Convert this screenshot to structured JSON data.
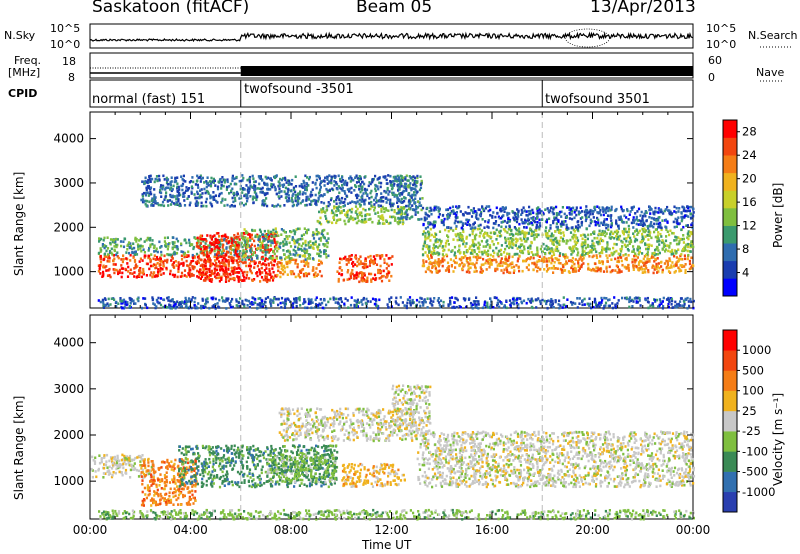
{
  "header": {
    "station": "Saskatoon (fitACF)",
    "beam": "Beam 05",
    "date": "13/Apr/2013"
  },
  "strip_labels": {
    "nsky": "N.Sky",
    "freq_l1": "Freq.",
    "freq_l2": "[MHz]",
    "cpid": "CPID",
    "nsearch": "N.Search",
    "nave": "Nave",
    "tick_10e5_left": "10^5",
    "tick_10e0_left": "10^0",
    "tick_10e5_right": "10^5",
    "tick_10e0_right": "10^0",
    "freq_18": "18",
    "freq_8": "8",
    "nave_60": "60",
    "nave_0": "0"
  },
  "cpid_segments": [
    {
      "label": "normal (fast) 151",
      "start_h": 0
    },
    {
      "label": "twofsound -3501",
      "start_h": 6
    },
    {
      "label": "twofsound 3501",
      "start_h": 18
    }
  ],
  "colors": {
    "accent_dashed": "#bbbbbb"
  },
  "chart_data": [
    {
      "type": "heatmap",
      "name": "power",
      "ylabel": "Slant Range [km]",
      "yticks": [
        1000,
        2000,
        3000,
        4000
      ],
      "ylim": [
        180,
        4600
      ],
      "xlim_h": [
        0,
        24
      ],
      "colorbar": {
        "label": "Power [dB]",
        "ticks": [
          "28",
          "24",
          "20",
          "16",
          "12",
          "8",
          "4"
        ],
        "range": [
          0,
          30
        ],
        "colors": [
          "#0000ff",
          "#1a3db0",
          "#2f6db0",
          "#3b9a6e",
          "#7fbf3f",
          "#c8d02a",
          "#f0b21e",
          "#f57d16",
          "#f2460f",
          "#ff0000"
        ]
      },
      "bands": [
        {
          "x0": 0.3,
          "x1": 5.9,
          "y0": 900,
          "y1": 1400,
          "v": 26
        },
        {
          "x0": 0.3,
          "x1": 5.9,
          "y0": 1400,
          "y1": 1800,
          "v": 11
        },
        {
          "x0": 4.2,
          "x1": 7.4,
          "y0": 800,
          "y1": 1900,
          "v": 27
        },
        {
          "x0": 7.4,
          "x1": 9.2,
          "y0": 900,
          "y1": 1300,
          "v": 22
        },
        {
          "x0": 5.9,
          "x1": 9.5,
          "y0": 1300,
          "y1": 2000,
          "v": 12
        },
        {
          "x0": 9.8,
          "x1": 12.0,
          "y0": 800,
          "y1": 1400,
          "v": 25
        },
        {
          "x0": 9.0,
          "x1": 12.5,
          "y0": 2100,
          "y1": 2500,
          "v": 14
        },
        {
          "x0": 12.2,
          "x1": 13.2,
          "y0": 2200,
          "y1": 3200,
          "v": 9
        },
        {
          "x0": 13.2,
          "x1": 24.0,
          "y0": 1000,
          "y1": 1400,
          "v": 22
        },
        {
          "x0": 13.2,
          "x1": 24.0,
          "y0": 1400,
          "y1": 2000,
          "v": 14
        },
        {
          "x0": 13.2,
          "x1": 24.0,
          "y0": 2000,
          "y1": 2500,
          "v": 6
        },
        {
          "x0": 2.0,
          "x1": 13.0,
          "y0": 2500,
          "y1": 3200,
          "v": 7
        },
        {
          "x0": 0.3,
          "x1": 24.0,
          "y0": 200,
          "y1": 450,
          "v": 6
        }
      ]
    },
    {
      "type": "heatmap",
      "name": "velocity",
      "ylabel": "Slant Range [km]",
      "yticks": [
        1000,
        2000,
        3000,
        4000
      ],
      "ylim": [
        180,
        4600
      ],
      "xlim_h": [
        0,
        24
      ],
      "colorbar": {
        "label": "Velocity [m s⁻¹]",
        "ticks": [
          "1000",
          "500",
          "100",
          "25",
          "-25",
          "-100",
          "-500",
          "-1000"
        ],
        "colors": [
          "#2a3fb0",
          "#3170b0",
          "#3a8a55",
          "#7fbf3f",
          "#c8c8c8",
          "#f0b21e",
          "#f57d16",
          "#f2460f",
          "#ff0000"
        ]
      },
      "bands": [
        {
          "x0": 0.0,
          "x1": 2.5,
          "y0": 1100,
          "y1": 1600,
          "c": 4
        },
        {
          "x0": 2.0,
          "x1": 4.2,
          "y0": 500,
          "y1": 1500,
          "c": 6
        },
        {
          "x0": 3.5,
          "x1": 9.8,
          "y0": 900,
          "y1": 1800,
          "c": 2
        },
        {
          "x0": 7.0,
          "x1": 9.8,
          "y0": 1000,
          "y1": 1600,
          "c": 3
        },
        {
          "x0": 10.0,
          "x1": 12.5,
          "y0": 900,
          "y1": 1400,
          "c": 5
        },
        {
          "x0": 7.5,
          "x1": 13.0,
          "y0": 1900,
          "y1": 2600,
          "c": 4
        },
        {
          "x0": 13.0,
          "x1": 24.0,
          "y0": 900,
          "y1": 2100,
          "c": 4
        },
        {
          "x0": 12.0,
          "x1": 13.5,
          "y0": 2100,
          "y1": 3100,
          "c": 4
        },
        {
          "x0": 0.3,
          "x1": 24.0,
          "y0": 200,
          "y1": 400,
          "c": 3
        }
      ]
    }
  ],
  "xaxis": {
    "label": "Time UT",
    "ticks": [
      "00:00",
      "04:00",
      "08:00",
      "12:00",
      "16:00",
      "20:00",
      "00:00"
    ]
  }
}
